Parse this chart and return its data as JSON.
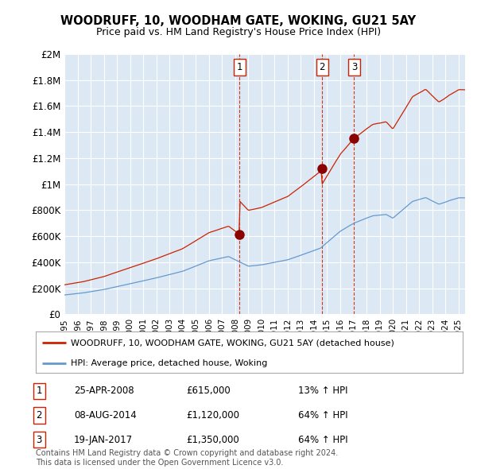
{
  "title": "WOODRUFF, 10, WOODHAM GATE, WOKING, GU21 5AY",
  "subtitle": "Price paid vs. HM Land Registry's House Price Index (HPI)",
  "hpi_color": "#6699cc",
  "price_color": "#cc2200",
  "marker_color": "#8B0000",
  "dashed_color": "#cc2200",
  "bg_color": "#ffffff",
  "chart_bg_color": "#dce9f5",
  "grid_color": "#ffffff",
  "ylim": [
    0,
    2000000
  ],
  "yticks": [
    0,
    200000,
    400000,
    600000,
    800000,
    1000000,
    1200000,
    1400000,
    1600000,
    1800000,
    2000000
  ],
  "ytick_labels": [
    "£0",
    "£200K",
    "£400K",
    "£600K",
    "£800K",
    "£1M",
    "£1.2M",
    "£1.4M",
    "£1.6M",
    "£1.8M",
    "£2M"
  ],
  "sale_t": [
    2008.32,
    2014.61,
    2017.05
  ],
  "sale_prices": [
    615000,
    1120000,
    1350000
  ],
  "sale_labels": [
    "1",
    "2",
    "3"
  ],
  "sale_hpi_pct": [
    "13% ↑ HPI",
    "64% ↑ HPI",
    "64% ↑ HPI"
  ],
  "sale_date_strs": [
    "25-APR-2008",
    "08-AUG-2014",
    "19-JAN-2017"
  ],
  "sale_price_strs": [
    "£615,000",
    "£1,120,000",
    "£1,350,000"
  ],
  "legend_label_red": "WOODRUFF, 10, WOODHAM GATE, WOKING, GU21 5AY (detached house)",
  "legend_label_blue": "HPI: Average price, detached house, Woking",
  "footnote": "Contains HM Land Registry data © Crown copyright and database right 2024.\nThis data is licensed under the Open Government Licence v3.0.",
  "xstart": 1995.0,
  "xend": 2025.5
}
